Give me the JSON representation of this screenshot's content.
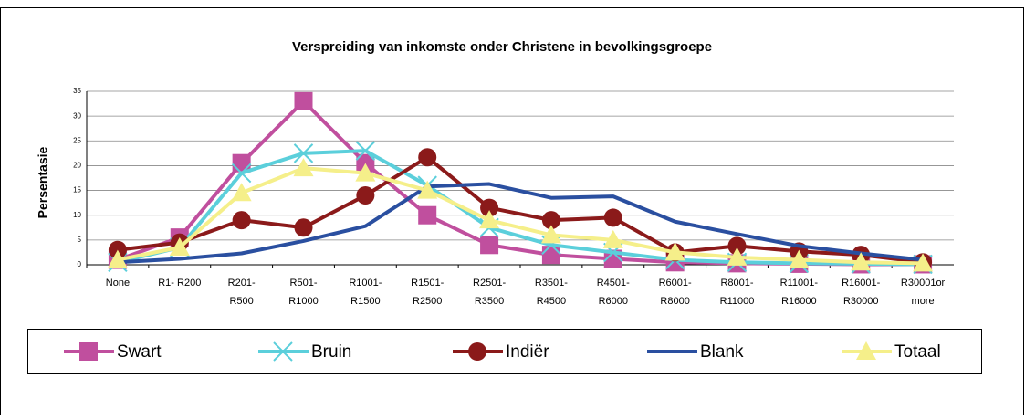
{
  "chart_data": {
    "type": "line",
    "title": "Verspreiding van inkomste onder Christene in bevolkingsgroepe",
    "ylabel": "Persentasie",
    "categories": [
      [
        "None"
      ],
      [
        "R1- R200"
      ],
      [
        "R201-",
        "R500"
      ],
      [
        "R501-",
        "R1000"
      ],
      [
        "R1001-",
        "R1500"
      ],
      [
        "R1501-",
        "R2500"
      ],
      [
        "R2501-",
        "R3500"
      ],
      [
        "R3501-",
        "R4500"
      ],
      [
        "R4501-",
        "R6000"
      ],
      [
        "R6001-",
        "R8000"
      ],
      [
        "R8001-",
        "R11000"
      ],
      [
        "R11001-",
        "R16000"
      ],
      [
        "R16001-",
        "R30000"
      ],
      [
        "R30001or",
        "more"
      ]
    ],
    "series": [
      {
        "name": "Swart",
        "color": "#c04f9e",
        "marker": "square",
        "values": [
          1,
          5.5,
          20.5,
          33,
          20.5,
          10,
          4,
          2,
          1.2,
          0.5,
          0.3,
          0.2,
          0.1,
          0.1
        ]
      },
      {
        "name": "Bruin",
        "color": "#5bcfdb",
        "marker": "x",
        "values": [
          0.5,
          3.5,
          18.5,
          22.5,
          23,
          16,
          7.5,
          4,
          2.5,
          1,
          0.5,
          0.3,
          0.2,
          0.1
        ]
      },
      {
        "name": "Indiër",
        "color": "#8b1a1a",
        "marker": "circle",
        "values": [
          3,
          4.5,
          9,
          7.5,
          14,
          21.7,
          11.5,
          9,
          9.5,
          2.5,
          3.8,
          2.7,
          2,
          0.5
        ]
      },
      {
        "name": "Blank",
        "color": "#2a4fa0",
        "marker": "none",
        "values": [
          0.5,
          1.2,
          2.3,
          4.8,
          7.8,
          15.8,
          16.3,
          13.5,
          13.8,
          8.7,
          6.2,
          3.8,
          2.3,
          1
        ]
      },
      {
        "name": "Totaal",
        "color": "#f5ef8a",
        "marker": "triangle",
        "values": [
          1,
          3.5,
          14.5,
          19.5,
          18.5,
          15,
          9,
          6,
          5,
          2.5,
          1.5,
          1,
          0.5,
          0.3
        ]
      }
    ],
    "ylim": [
      0,
      35
    ],
    "yticks": [
      0,
      5,
      10,
      15,
      20,
      25,
      30,
      35
    ],
    "grid": true
  }
}
